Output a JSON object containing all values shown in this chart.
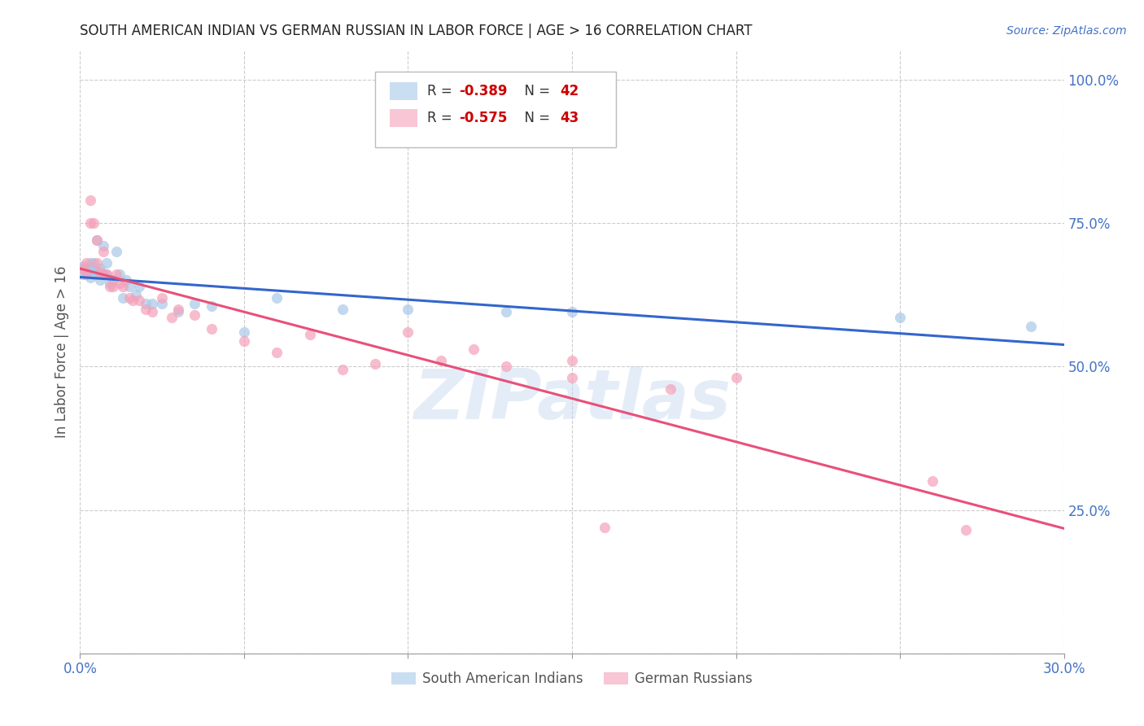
{
  "title": "SOUTH AMERICAN INDIAN VS GERMAN RUSSIAN IN LABOR FORCE | AGE > 16 CORRELATION CHART",
  "source": "Source: ZipAtlas.com",
  "ylabel": "In Labor Force | Age > 16",
  "xlim": [
    0.0,
    0.3
  ],
  "ylim": [
    0.0,
    1.05
  ],
  "ytick_labels": [
    "",
    "25.0%",
    "50.0%",
    "75.0%",
    "100.0%"
  ],
  "ytick_values": [
    0.0,
    0.25,
    0.5,
    0.75,
    1.0
  ],
  "xtick_labels": [
    "0.0%",
    "",
    "",
    "",
    "",
    "",
    "30.0%"
  ],
  "xtick_values": [
    0.0,
    0.05,
    0.1,
    0.15,
    0.2,
    0.25,
    0.3
  ],
  "legend_blue_r": "-0.389",
  "legend_blue_n": "42",
  "legend_pink_r": "-0.575",
  "legend_pink_n": "43",
  "blue_color": "#a8c8e8",
  "pink_color": "#f4a0b8",
  "blue_line_color": "#3366cc",
  "pink_line_color": "#e8507a",
  "watermark": "ZIPatlas",
  "blue_scatter_x": [
    0.001,
    0.001,
    0.002,
    0.002,
    0.003,
    0.003,
    0.003,
    0.004,
    0.004,
    0.004,
    0.005,
    0.005,
    0.005,
    0.006,
    0.006,
    0.007,
    0.007,
    0.008,
    0.008,
    0.009,
    0.01,
    0.011,
    0.012,
    0.013,
    0.014,
    0.015,
    0.017,
    0.018,
    0.02,
    0.022,
    0.025,
    0.03,
    0.035,
    0.04,
    0.05,
    0.06,
    0.08,
    0.1,
    0.13,
    0.15,
    0.25,
    0.29
  ],
  "blue_scatter_y": [
    0.675,
    0.66,
    0.67,
    0.665,
    0.68,
    0.67,
    0.655,
    0.68,
    0.66,
    0.67,
    0.72,
    0.66,
    0.665,
    0.67,
    0.65,
    0.71,
    0.66,
    0.66,
    0.68,
    0.645,
    0.65,
    0.7,
    0.66,
    0.62,
    0.65,
    0.64,
    0.625,
    0.64,
    0.61,
    0.61,
    0.61,
    0.595,
    0.61,
    0.605,
    0.56,
    0.62,
    0.6,
    0.6,
    0.595,
    0.595,
    0.585,
    0.57
  ],
  "pink_scatter_x": [
    0.001,
    0.002,
    0.002,
    0.003,
    0.003,
    0.004,
    0.005,
    0.005,
    0.006,
    0.007,
    0.007,
    0.008,
    0.009,
    0.01,
    0.011,
    0.012,
    0.013,
    0.015,
    0.016,
    0.018,
    0.02,
    0.022,
    0.025,
    0.028,
    0.03,
    0.035,
    0.04,
    0.05,
    0.06,
    0.07,
    0.08,
    0.09,
    0.1,
    0.11,
    0.12,
    0.15,
    0.16,
    0.18,
    0.2,
    0.15,
    0.26,
    0.27,
    0.13
  ],
  "pink_scatter_y": [
    0.67,
    0.66,
    0.68,
    0.79,
    0.75,
    0.75,
    0.72,
    0.68,
    0.665,
    0.7,
    0.66,
    0.66,
    0.64,
    0.64,
    0.66,
    0.645,
    0.64,
    0.62,
    0.615,
    0.615,
    0.6,
    0.595,
    0.62,
    0.585,
    0.6,
    0.59,
    0.565,
    0.545,
    0.525,
    0.555,
    0.495,
    0.505,
    0.56,
    0.51,
    0.53,
    0.48,
    0.22,
    0.46,
    0.48,
    0.51,
    0.3,
    0.215,
    0.5
  ],
  "background_color": "#ffffff",
  "grid_color": "#cccccc"
}
